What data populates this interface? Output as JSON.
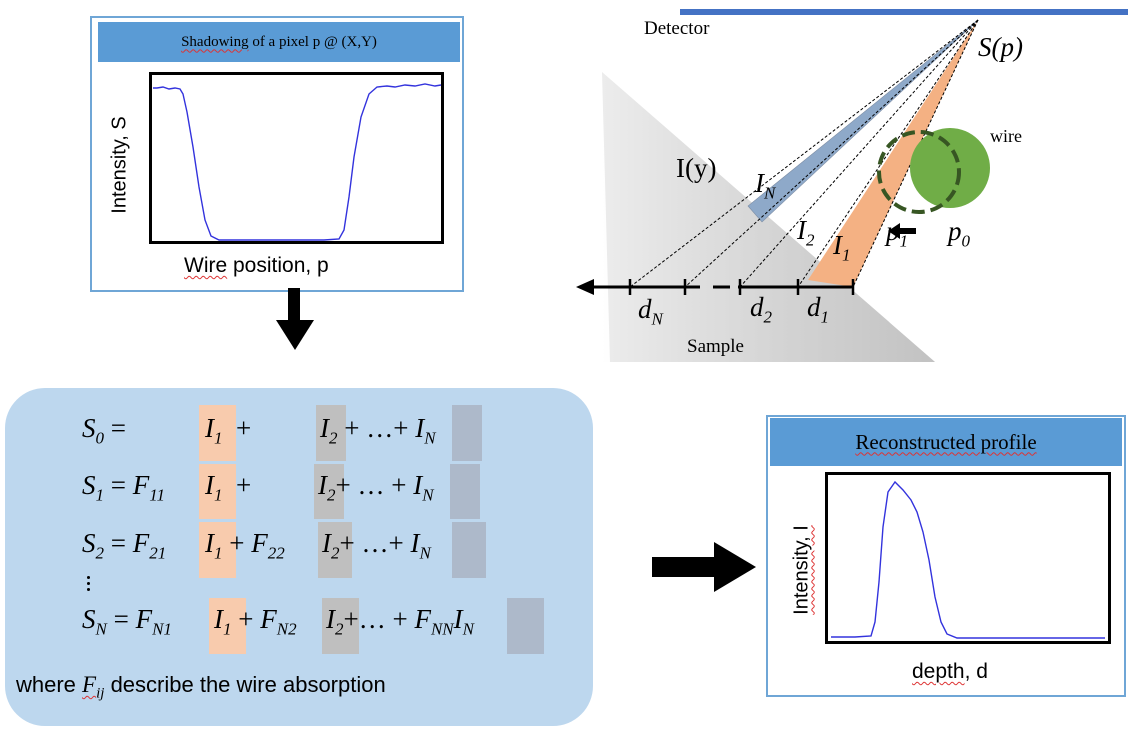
{
  "panel1": {
    "title": "Shadowing of a pixel p @ (X,Y)",
    "ylabel": "Intensity, S",
    "xlabel": "Wire position, p"
  },
  "geometry": {
    "detector": "Detector",
    "source": "S(p)",
    "wire": "wire",
    "intensity": "I(y)",
    "sample": "Sample",
    "beams": [
      "I",
      "I",
      "I"
    ],
    "beam_subs": [
      "N",
      "2",
      "1"
    ],
    "depth": [
      "d",
      "d",
      "d"
    ],
    "depth_subs": [
      "N",
      "2",
      "1"
    ],
    "positions": [
      "p",
      "p"
    ],
    "position_subs": [
      "1",
      "0"
    ]
  },
  "equations": {
    "lines": [
      {
        "lhs": "S",
        "lhs_sub": "0",
        "coef1": "",
        "term1": "I",
        "term1_sub": "1",
        "coef2": "",
        "term2": "I",
        "term2_sub": "2",
        "dots": " + …+ ",
        "coefN": "",
        "termN": "I",
        "termN_sub": "N"
      },
      {
        "lhs": "S",
        "lhs_sub": "1",
        "coef1": "F",
        "coef1_sub": "11",
        "term1": "I",
        "term1_sub": "1",
        "coef2": "",
        "term2": "I",
        "term2_sub": "2",
        "dots": "+ … + ",
        "coefN": "",
        "termN": "I",
        "termN_sub": "N"
      },
      {
        "lhs": "S",
        "lhs_sub": "2",
        "coef1": "F",
        "coef1_sub": "21",
        "term1": "I",
        "term1_sub": "1",
        "coef2": "F",
        "coef2_sub": "22",
        "term2": "I",
        "term2_sub": "2",
        "dots": "+ …+ ",
        "coefN": "",
        "termN": "I",
        "termN_sub": "N"
      },
      {
        "lhs": "S",
        "lhs_sub": "N",
        "coef1": "F",
        "coef1_sub": "N1",
        "term1": "I",
        "term1_sub": "1",
        "coef2": "F",
        "coef2_sub": "N2",
        "term2": "I",
        "term2_sub": "2",
        "dots": "+… + ",
        "coefN": "F",
        "coefN_sub": "NN",
        "termN": "I",
        "termN_sub": "N"
      }
    ],
    "note_pre": "where ",
    "note_var": "F",
    "note_sub": "ij",
    "note_post": " describe the wire absorption"
  },
  "panel3": {
    "title": "Reconstructed profile",
    "ylabel": "Intensity, I",
    "xlabel": "depth, d"
  },
  "colors": {
    "panel_border": "#6fa6d6",
    "title_fill": "#5a9bd5",
    "eq_panel": "#bdd7ee",
    "highlight_orange": "#f8cbad",
    "highlight_gray": "#bfbfbf",
    "highlight_blue_gray": "#adb9ca",
    "wire_green": "#70ad47",
    "beam_orange": "#f4b183",
    "beam_blue": "#8ea9c9",
    "detector": "#4472c4",
    "curve": "#3333dd"
  }
}
